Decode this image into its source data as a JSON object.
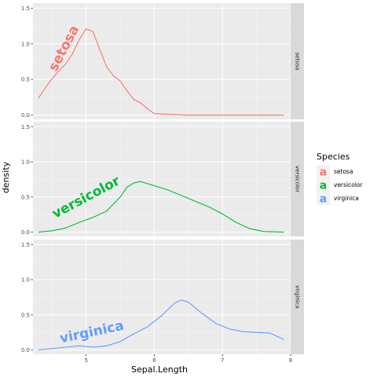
{
  "chart_data": {
    "type": "line",
    "xlabel": "Sepal.Length",
    "ylabel": "density",
    "xlim": [
      4.22,
      8.0
    ],
    "ylim": [
      -0.06,
      1.57
    ],
    "x_ticks": [
      5,
      6,
      7,
      8
    ],
    "y_ticks": [
      0.0,
      0.5,
      1.0,
      1.5
    ],
    "y_tick_labels": [
      "0.0",
      "0.5",
      "1.0",
      "1.5"
    ],
    "grid": true,
    "legend": {
      "title": "Species",
      "placement": "right",
      "key_glyph": "a"
    },
    "facets": [
      "setosa",
      "versicolor",
      "virginica"
    ],
    "series": [
      {
        "name": "setosa",
        "color": "#F8766D",
        "x": [
          4.3,
          4.4,
          4.5,
          4.6,
          4.7,
          4.8,
          4.9,
          5.0,
          5.1,
          5.2,
          5.3,
          5.4,
          5.5,
          5.6,
          5.7,
          5.8,
          5.9,
          6.0,
          6.5,
          7.0,
          7.5,
          7.9
        ],
        "y": [
          0.24,
          0.38,
          0.51,
          0.62,
          0.72,
          0.86,
          1.06,
          1.21,
          1.17,
          0.92,
          0.68,
          0.55,
          0.48,
          0.34,
          0.22,
          0.17,
          0.09,
          0.02,
          0.0,
          0.0,
          0.0,
          0.0
        ]
      },
      {
        "name": "versicolor",
        "color": "#00BA38",
        "x": [
          4.3,
          4.5,
          4.7,
          4.9,
          5.1,
          5.3,
          5.5,
          5.6,
          5.7,
          5.8,
          6.0,
          6.2,
          6.4,
          6.6,
          6.8,
          7.0,
          7.2,
          7.4,
          7.6,
          7.9
        ],
        "y": [
          0.0,
          0.02,
          0.06,
          0.14,
          0.21,
          0.3,
          0.5,
          0.64,
          0.7,
          0.72,
          0.66,
          0.6,
          0.52,
          0.44,
          0.36,
          0.26,
          0.14,
          0.05,
          0.01,
          0.0
        ]
      },
      {
        "name": "virginica",
        "color": "#619CFF",
        "x": [
          4.3,
          4.5,
          4.7,
          4.9,
          5.1,
          5.3,
          5.5,
          5.7,
          5.9,
          6.1,
          6.3,
          6.4,
          6.5,
          6.7,
          6.9,
          7.1,
          7.3,
          7.5,
          7.7,
          7.9
        ],
        "y": [
          0.0,
          0.02,
          0.04,
          0.06,
          0.04,
          0.06,
          0.12,
          0.23,
          0.33,
          0.48,
          0.67,
          0.71,
          0.68,
          0.52,
          0.38,
          0.3,
          0.26,
          0.25,
          0.24,
          0.15
        ]
      }
    ]
  }
}
